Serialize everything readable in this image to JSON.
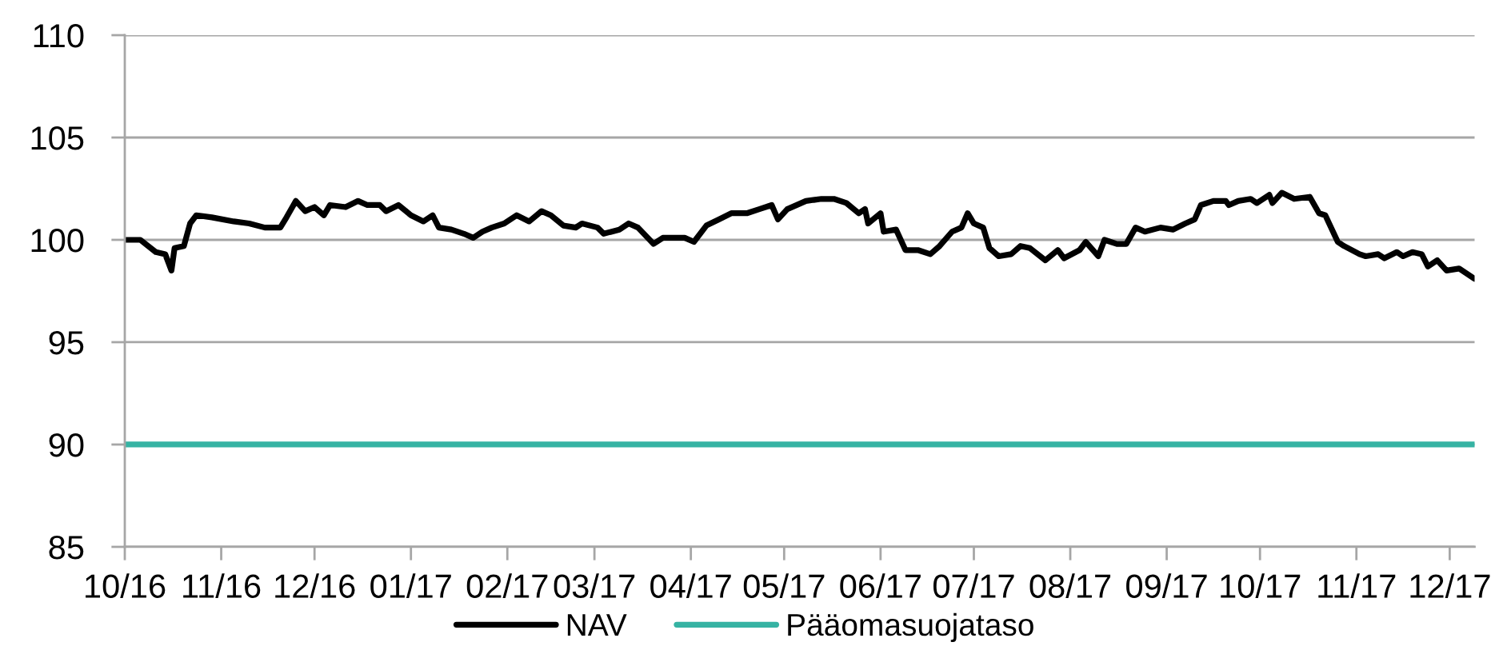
{
  "chart_data": {
    "type": "line",
    "xlim": [
      "2016-10-01",
      "2017-12-09"
    ],
    "ylim": [
      85,
      110
    ],
    "yticks": [
      85,
      90,
      95,
      100,
      105,
      110
    ],
    "xticks": [
      {
        "value": "2016-10-01",
        "label": "10/16"
      },
      {
        "value": "2016-11-01",
        "label": "11/16"
      },
      {
        "value": "2016-12-01",
        "label": "12/16"
      },
      {
        "value": "2017-01-01",
        "label": "01/17"
      },
      {
        "value": "2017-02-01",
        "label": "02/17"
      },
      {
        "value": "2017-03-01",
        "label": "03/17"
      },
      {
        "value": "2017-04-01",
        "label": "04/17"
      },
      {
        "value": "2017-05-01",
        "label": "05/17"
      },
      {
        "value": "2017-06-01",
        "label": "06/17"
      },
      {
        "value": "2017-07-01",
        "label": "07/17"
      },
      {
        "value": "2017-08-01",
        "label": "08/17"
      },
      {
        "value": "2017-09-01",
        "label": "09/17"
      },
      {
        "value": "2017-10-01",
        "label": "10/17"
      },
      {
        "value": "2017-11-01",
        "label": "11/17"
      },
      {
        "value": "2017-12-01",
        "label": "12/17"
      }
    ],
    "grid": "y",
    "legend": "bottom",
    "line_style": "solid",
    "series": [
      {
        "name": "NAV",
        "color": "#000000",
        "x": [
          "2016-10-01",
          "2016-10-06",
          "2016-10-11",
          "2016-10-14",
          "2016-10-16",
          "2016-10-17",
          "2016-10-20",
          "2016-10-22",
          "2016-10-24",
          "2016-10-29",
          "2016-11-05",
          "2016-11-10",
          "2016-11-15",
          "2016-11-20",
          "2016-11-22",
          "2016-11-25",
          "2016-11-28",
          "2016-12-01",
          "2016-12-04",
          "2016-12-06",
          "2016-12-11",
          "2016-12-15",
          "2016-12-18",
          "2016-12-22",
          "2016-12-24",
          "2016-12-28",
          "2017-01-01",
          "2017-01-05",
          "2017-01-08",
          "2017-01-10",
          "2017-01-14",
          "2017-01-18",
          "2017-01-21",
          "2017-01-24",
          "2017-01-27",
          "2017-01-31",
          "2017-02-04",
          "2017-02-08",
          "2017-02-12",
          "2017-02-15",
          "2017-02-19",
          "2017-02-23",
          "2017-02-25",
          "2017-03-02",
          "2017-03-04",
          "2017-03-09",
          "2017-03-12",
          "2017-03-15",
          "2017-03-20",
          "2017-03-23",
          "2017-03-30",
          "2017-04-02",
          "2017-04-06",
          "2017-04-10",
          "2017-04-14",
          "2017-04-19",
          "2017-04-23",
          "2017-04-27",
          "2017-04-29",
          "2017-05-02",
          "2017-05-08",
          "2017-05-13",
          "2017-05-17",
          "2017-05-21",
          "2017-05-25",
          "2017-05-27",
          "2017-05-28",
          "2017-06-01",
          "2017-06-02",
          "2017-06-06",
          "2017-06-09",
          "2017-06-13",
          "2017-06-17",
          "2017-06-20",
          "2017-06-24",
          "2017-06-27",
          "2017-06-29",
          "2017-07-01",
          "2017-07-04",
          "2017-07-06",
          "2017-07-09",
          "2017-07-13",
          "2017-07-16",
          "2017-07-19",
          "2017-07-24",
          "2017-07-28",
          "2017-07-30",
          "2017-08-04",
          "2017-08-06",
          "2017-08-10",
          "2017-08-12",
          "2017-08-16",
          "2017-08-19",
          "2017-08-22",
          "2017-08-25",
          "2017-08-30",
          "2017-09-03",
          "2017-09-07",
          "2017-09-10",
          "2017-09-12",
          "2017-09-16",
          "2017-09-20",
          "2017-09-21",
          "2017-09-24",
          "2017-09-28",
          "2017-09-30",
          "2017-10-04",
          "2017-10-05",
          "2017-10-08",
          "2017-10-12",
          "2017-10-17",
          "2017-10-20",
          "2017-10-22",
          "2017-10-26",
          "2017-10-28",
          "2017-11-02",
          "2017-11-04",
          "2017-11-08",
          "2017-11-10",
          "2017-11-14",
          "2017-11-16",
          "2017-11-19",
          "2017-11-22",
          "2017-11-24",
          "2017-11-27",
          "2017-11-30",
          "2017-12-04",
          "2017-12-09"
        ],
        "values": [
          100.0,
          100.0,
          99.4,
          99.3,
          98.5,
          99.6,
          99.7,
          100.8,
          101.2,
          101.1,
          100.9,
          100.8,
          100.6,
          100.6,
          101.1,
          101.9,
          101.4,
          101.6,
          101.2,
          101.7,
          101.6,
          101.9,
          101.7,
          101.7,
          101.4,
          101.7,
          101.2,
          100.9,
          101.2,
          100.6,
          100.5,
          100.3,
          100.1,
          100.4,
          100.6,
          100.8,
          101.2,
          100.9,
          101.4,
          101.2,
          100.7,
          100.6,
          100.8,
          100.6,
          100.3,
          100.5,
          100.8,
          100.6,
          99.8,
          100.1,
          100.1,
          99.9,
          100.7,
          101.0,
          101.3,
          101.3,
          101.5,
          101.7,
          101.0,
          101.5,
          101.9,
          102.0,
          102.0,
          101.8,
          101.3,
          101.5,
          100.8,
          101.3,
          100.4,
          100.5,
          99.5,
          99.5,
          99.3,
          99.7,
          100.4,
          100.6,
          101.3,
          100.8,
          100.6,
          99.6,
          99.2,
          99.3,
          99.7,
          99.6,
          99.0,
          99.5,
          99.1,
          99.5,
          99.9,
          99.2,
          100.0,
          99.8,
          99.8,
          100.6,
          100.4,
          100.6,
          100.5,
          100.8,
          101.0,
          101.7,
          101.9,
          101.9,
          101.7,
          101.9,
          102.0,
          101.8,
          102.2,
          101.8,
          102.3,
          102.0,
          102.1,
          101.3,
          101.2,
          99.9,
          99.7,
          99.3,
          99.2,
          99.3,
          99.1,
          99.4,
          99.2,
          99.4,
          99.3,
          98.7,
          99.0,
          98.5,
          98.6,
          98.1
        ]
      },
      {
        "name": "Pääomasuojataso",
        "color": "#36b3a3",
        "x": [
          "2016-10-01",
          "2017-12-09"
        ],
        "values": [
          90,
          90
        ]
      }
    ]
  }
}
